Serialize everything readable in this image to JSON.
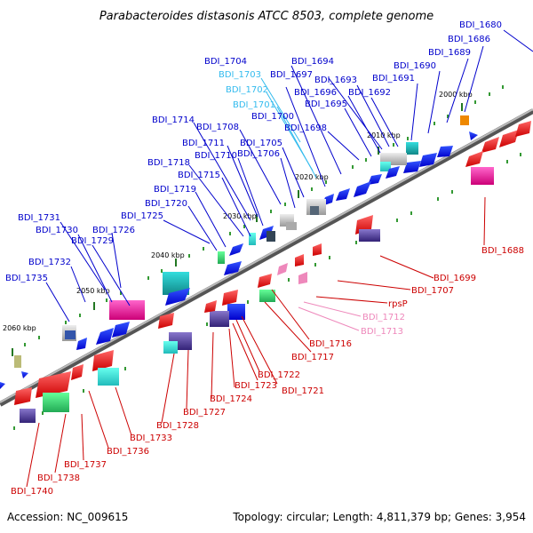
{
  "title": "Parabacteroides distasonis ATCC 8503, complete genome",
  "footer": {
    "accession": "Accession: NC_009615",
    "summary": "Topology: circular; Length: 4,811,379 bp; Genes: 3,954"
  },
  "colors": {
    "plus_label": "#0000cc",
    "minus_label": "#cc0000",
    "rna_plus_label": "#33bbee",
    "rna_minus_label": "#ee88bb",
    "backbone": "#808080",
    "tick_dot": "#339933"
  },
  "scale_ticks": [
    "2000 kbp",
    "2010 kbp",
    "2020 kbp",
    "2030 kbp",
    "2040 kbp",
    "2050 kbp",
    "2060 kbp"
  ],
  "plus_labels": [
    {
      "text": "BDI_1680",
      "color": "#0000cc"
    },
    {
      "text": "BDI_1686",
      "color": "#0000cc"
    },
    {
      "text": "BDI_1689",
      "color": "#0000cc"
    },
    {
      "text": "BDI_1690",
      "color": "#0000cc"
    },
    {
      "text": "BDI_1691",
      "color": "#0000cc"
    },
    {
      "text": "BDI_1694",
      "color": "#0000cc"
    },
    {
      "text": "BDI_1697",
      "color": "#0000cc"
    },
    {
      "text": "BDI_1693",
      "color": "#0000cc"
    },
    {
      "text": "BDI_1696",
      "color": "#0000cc"
    },
    {
      "text": "BDI_1692",
      "color": "#0000cc"
    },
    {
      "text": "BDI_1695",
      "color": "#0000cc"
    },
    {
      "text": "BDI_1704",
      "color": "#0000cc"
    },
    {
      "text": "BDI_1703",
      "color": "#33bbee"
    },
    {
      "text": "BDI_1702",
      "color": "#33bbee"
    },
    {
      "text": "BDI_1701",
      "color": "#33bbee"
    },
    {
      "text": "BDI_1700",
      "color": "#0000cc"
    },
    {
      "text": "BDI_1698",
      "color": "#0000cc"
    },
    {
      "text": "BDI_1714",
      "color": "#0000cc"
    },
    {
      "text": "BDI_1708",
      "color": "#0000cc"
    },
    {
      "text": "BDI_1711",
      "color": "#0000cc"
    },
    {
      "text": "BDI_1705",
      "color": "#0000cc"
    },
    {
      "text": "BDI_1710",
      "color": "#0000cc"
    },
    {
      "text": "BDI_1706",
      "color": "#0000cc"
    },
    {
      "text": "BDI_1718",
      "color": "#0000cc"
    },
    {
      "text": "BDI_1715",
      "color": "#0000cc"
    },
    {
      "text": "BDI_1719",
      "color": "#0000cc"
    },
    {
      "text": "BDI_1720",
      "color": "#0000cc"
    },
    {
      "text": "BDI_1725",
      "color": "#0000cc"
    },
    {
      "text": "BDI_1731",
      "color": "#0000cc"
    },
    {
      "text": "BDI_1730",
      "color": "#0000cc"
    },
    {
      "text": "BDI_1726",
      "color": "#0000cc"
    },
    {
      "text": "BDI_1729",
      "color": "#0000cc"
    },
    {
      "text": "BDI_1732",
      "color": "#0000cc"
    },
    {
      "text": "BDI_1735",
      "color": "#0000cc"
    }
  ],
  "minus_labels": [
    {
      "text": "BDI_1688",
      "color": "#cc0000"
    },
    {
      "text": "BDI_1699",
      "color": "#cc0000"
    },
    {
      "text": "BDI_1707",
      "color": "#cc0000"
    },
    {
      "text": "rpsP",
      "color": "#cc0000"
    },
    {
      "text": "BDI_1712",
      "color": "#ee88bb"
    },
    {
      "text": "BDI_1713",
      "color": "#ee88bb"
    },
    {
      "text": "BDI_1716",
      "color": "#cc0000"
    },
    {
      "text": "BDI_1717",
      "color": "#cc0000"
    },
    {
      "text": "BDI_1722",
      "color": "#cc0000"
    },
    {
      "text": "BDI_1721",
      "color": "#cc0000"
    },
    {
      "text": "BDI_1723",
      "color": "#cc0000"
    },
    {
      "text": "BDI_1724",
      "color": "#cc0000"
    },
    {
      "text": "BDI_1727",
      "color": "#cc0000"
    },
    {
      "text": "BDI_1728",
      "color": "#cc0000"
    },
    {
      "text": "BDI_1733",
      "color": "#cc0000"
    },
    {
      "text": "BDI_1736",
      "color": "#cc0000"
    },
    {
      "text": "BDI_1737",
      "color": "#cc0000"
    },
    {
      "text": "BDI_1738",
      "color": "#cc0000"
    },
    {
      "text": "BDI_1740",
      "color": "#cc0000"
    }
  ]
}
